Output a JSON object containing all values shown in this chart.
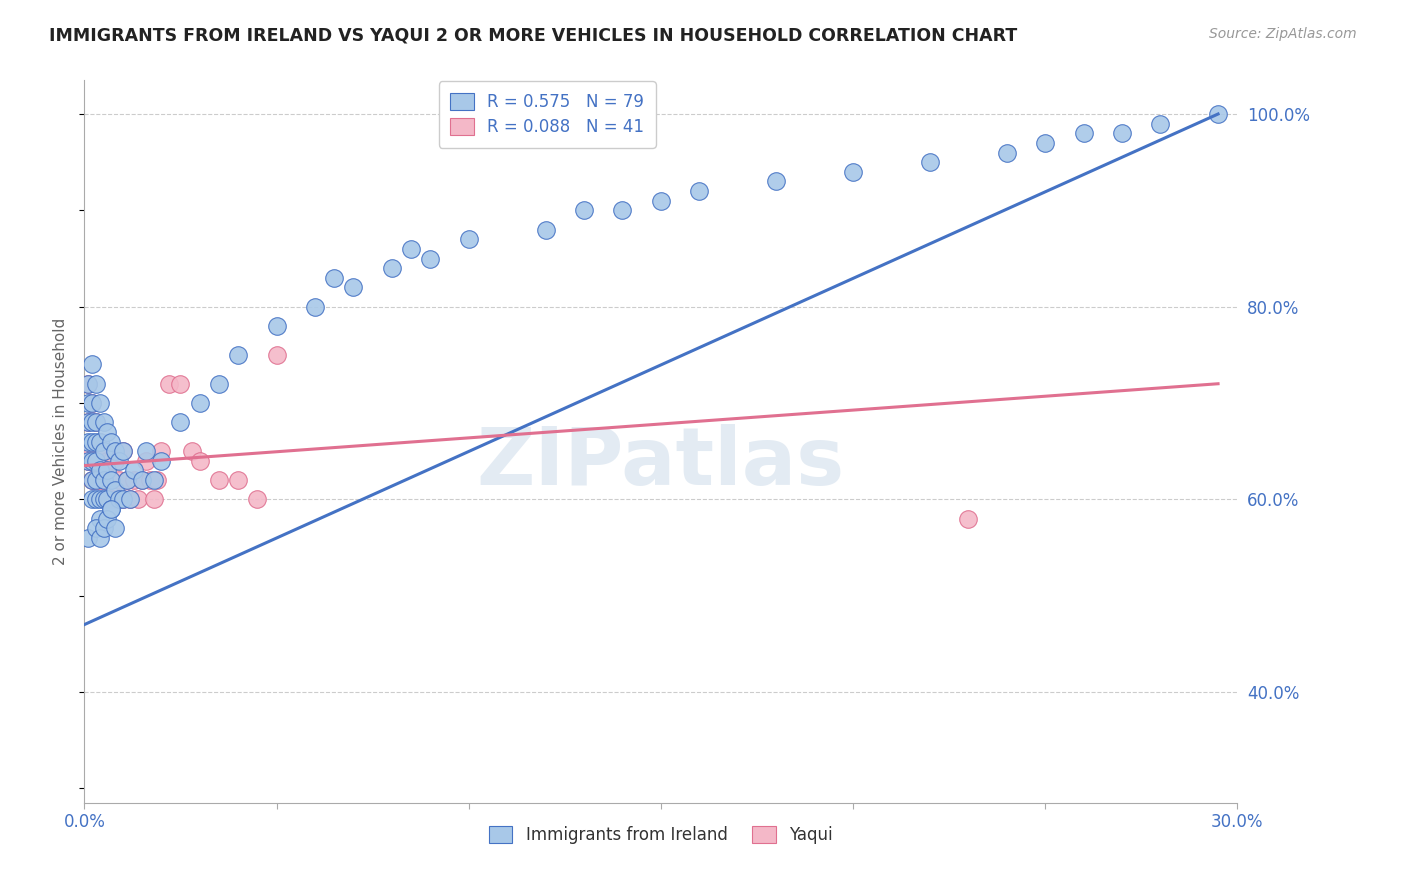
{
  "title": "IMMIGRANTS FROM IRELAND VS YAQUI 2 OR MORE VEHICLES IN HOUSEHOLD CORRELATION CHART",
  "source_text": "Source: ZipAtlas.com",
  "ylabel": "2 or more Vehicles in Household",
  "xlim": [
    0.0,
    0.3
  ],
  "ylim": [
    0.285,
    1.035
  ],
  "xticks": [
    0.0,
    0.05,
    0.1,
    0.15,
    0.2,
    0.25,
    0.3
  ],
  "xticklabels": [
    "0.0%",
    "",
    "",
    "",
    "",
    "",
    "30.0%"
  ],
  "yticks_right": [
    0.4,
    0.6,
    0.8,
    1.0
  ],
  "ytick_right_labels": [
    "40.0%",
    "60.0%",
    "80.0%",
    "100.0%"
  ],
  "legend_label_blue": "Immigrants from Ireland",
  "legend_label_pink": "Yaqui",
  "blue_color": "#a8c8e8",
  "blue_edge_color": "#4472c4",
  "pink_color": "#f4b8c8",
  "pink_edge_color": "#e07090",
  "blue_line_color": "#4472c4",
  "pink_line_color": "#e07090",
  "axis_label_color": "#4472c4",
  "grid_color": "#cccccc",
  "watermark_color": "#c8d8e8",
  "blue_scatter_x": [
    0.001,
    0.001,
    0.001,
    0.001,
    0.001,
    0.002,
    0.002,
    0.002,
    0.002,
    0.002,
    0.002,
    0.002,
    0.003,
    0.003,
    0.003,
    0.003,
    0.003,
    0.003,
    0.004,
    0.004,
    0.004,
    0.004,
    0.004,
    0.005,
    0.005,
    0.005,
    0.005,
    0.006,
    0.006,
    0.006,
    0.007,
    0.007,
    0.007,
    0.008,
    0.008,
    0.009,
    0.009,
    0.01,
    0.01,
    0.011,
    0.012,
    0.013,
    0.015,
    0.016,
    0.018,
    0.02,
    0.025,
    0.03,
    0.035,
    0.04,
    0.05,
    0.06,
    0.065,
    0.07,
    0.08,
    0.085,
    0.09,
    0.1,
    0.12,
    0.13,
    0.14,
    0.15,
    0.16,
    0.18,
    0.2,
    0.22,
    0.24,
    0.25,
    0.26,
    0.27,
    0.28,
    0.295,
    0.001,
    0.003,
    0.004,
    0.005,
    0.006,
    0.007,
    0.008
  ],
  "blue_scatter_y": [
    0.64,
    0.66,
    0.68,
    0.7,
    0.72,
    0.6,
    0.62,
    0.64,
    0.66,
    0.68,
    0.7,
    0.74,
    0.6,
    0.62,
    0.64,
    0.66,
    0.68,
    0.72,
    0.58,
    0.6,
    0.63,
    0.66,
    0.7,
    0.6,
    0.62,
    0.65,
    0.68,
    0.6,
    0.63,
    0.67,
    0.59,
    0.62,
    0.66,
    0.61,
    0.65,
    0.6,
    0.64,
    0.6,
    0.65,
    0.62,
    0.6,
    0.63,
    0.62,
    0.65,
    0.62,
    0.64,
    0.68,
    0.7,
    0.72,
    0.75,
    0.78,
    0.8,
    0.83,
    0.82,
    0.84,
    0.86,
    0.85,
    0.87,
    0.88,
    0.9,
    0.9,
    0.91,
    0.92,
    0.93,
    0.94,
    0.95,
    0.96,
    0.97,
    0.98,
    0.98,
    0.99,
    1.0,
    0.56,
    0.57,
    0.56,
    0.57,
    0.58,
    0.59,
    0.57
  ],
  "pink_scatter_x": [
    0.001,
    0.001,
    0.001,
    0.002,
    0.002,
    0.002,
    0.003,
    0.003,
    0.003,
    0.004,
    0.004,
    0.005,
    0.005,
    0.006,
    0.006,
    0.007,
    0.007,
    0.008,
    0.008,
    0.009,
    0.01,
    0.01,
    0.011,
    0.012,
    0.013,
    0.014,
    0.015,
    0.016,
    0.017,
    0.018,
    0.019,
    0.02,
    0.022,
    0.025,
    0.028,
    0.03,
    0.035,
    0.04,
    0.045,
    0.05,
    0.23
  ],
  "pink_scatter_y": [
    0.64,
    0.68,
    0.72,
    0.62,
    0.65,
    0.7,
    0.62,
    0.65,
    0.68,
    0.62,
    0.66,
    0.62,
    0.65,
    0.6,
    0.64,
    0.6,
    0.64,
    0.6,
    0.64,
    0.62,
    0.6,
    0.65,
    0.62,
    0.6,
    0.62,
    0.6,
    0.62,
    0.64,
    0.62,
    0.6,
    0.62,
    0.65,
    0.72,
    0.72,
    0.65,
    0.64,
    0.62,
    0.62,
    0.6,
    0.75,
    0.58
  ],
  "blue_line_x": [
    0.0,
    0.295
  ],
  "blue_line_y": [
    0.47,
    1.0
  ],
  "pink_line_x": [
    0.0,
    0.295
  ],
  "pink_line_y": [
    0.635,
    0.72
  ],
  "figsize": [
    14.06,
    8.92
  ],
  "dpi": 100
}
